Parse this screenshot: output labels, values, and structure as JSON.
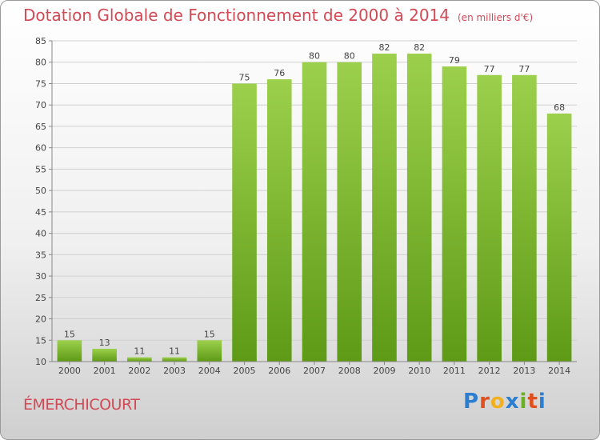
{
  "title": "Dotation Globale de Fonctionnement de 2000 à 2014",
  "unit": "(en milliers d'€)",
  "commune": "ÉMERCHICOURT",
  "logo": {
    "letters": [
      "P",
      "r",
      "o",
      "x",
      "i",
      "t",
      "i"
    ],
    "colors": [
      "#2c7fd0",
      "#e0501e",
      "#f2b01e",
      "#2c7fd0",
      "#6ab023",
      "#e0501e",
      "#2c7fd0"
    ]
  },
  "colors": {
    "bar_top": "#9cd04c",
    "bar_bottom": "#5e9a16",
    "accent_text": "#d24a55"
  },
  "chart_data": {
    "type": "bar",
    "categories": [
      "2000",
      "2001",
      "2002",
      "2003",
      "2004",
      "2005",
      "2006",
      "2007",
      "2008",
      "2009",
      "2010",
      "2011",
      "2012",
      "2013",
      "2014"
    ],
    "values": [
      15,
      13,
      11,
      11,
      15,
      75,
      76,
      80,
      80,
      82,
      82,
      79,
      77,
      77,
      68
    ],
    "ylim": [
      10,
      85
    ],
    "yticks": [
      10,
      15,
      20,
      25,
      30,
      35,
      40,
      45,
      50,
      55,
      60,
      65,
      70,
      75,
      80,
      85
    ],
    "grid": true
  }
}
